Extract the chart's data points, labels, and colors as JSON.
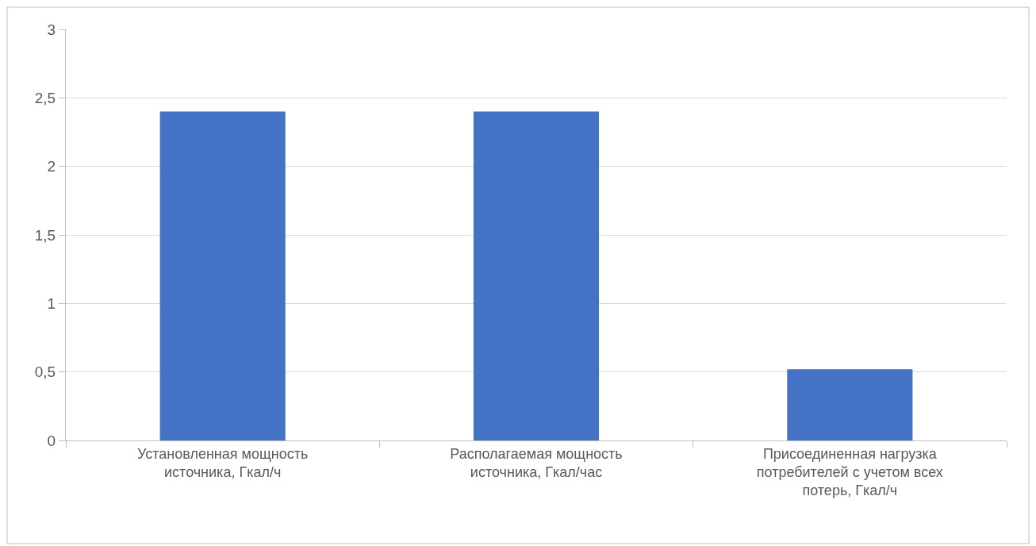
{
  "chart_data": {
    "type": "bar",
    "categories": [
      "Установленная мощность источника, Гкал/ч",
      "Располагаемая мощность источника, Гкал/час",
      "Присоединенная нагрузка потребителей с учетом всех потерь, Гкал/ч"
    ],
    "values": [
      2.4,
      2.4,
      0.52
    ],
    "color": "#4472c4",
    "ylim": [
      0,
      3
    ],
    "yticks": [
      0,
      {
        "value": 0.5,
        "label": "0,5"
      },
      1,
      {
        "value": 1.5,
        "label": "1,5"
      },
      2,
      {
        "value": 2.5,
        "label": "2,5"
      },
      3
    ],
    "grid": "y"
  }
}
